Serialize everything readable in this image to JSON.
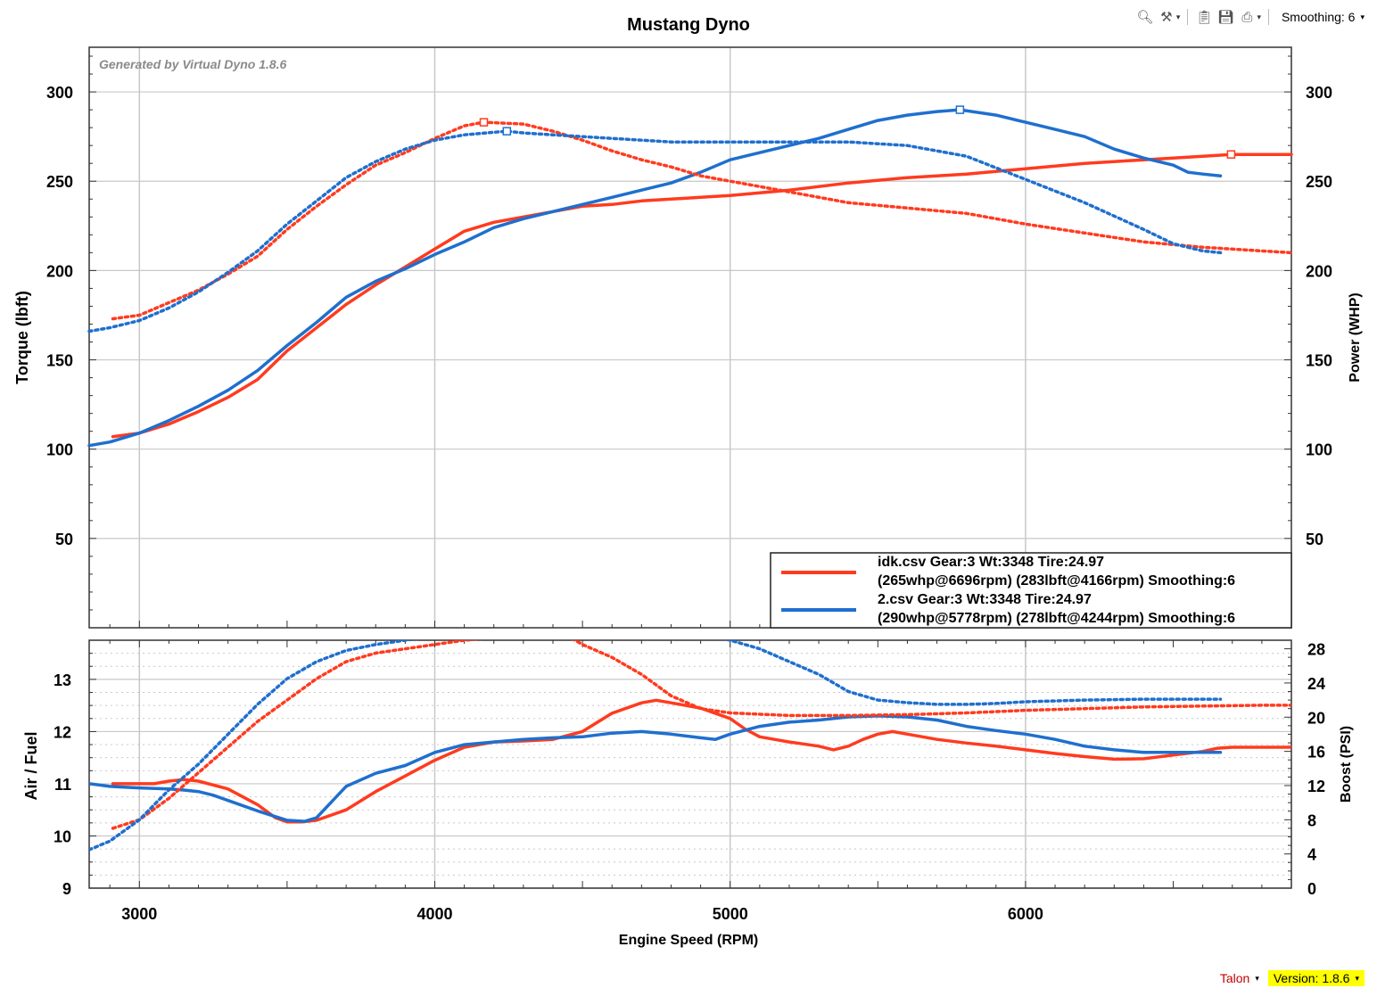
{
  "toolbar": {
    "icons": [
      "zoom-icon",
      "tools-icon",
      "clipboard-icon",
      "save-icon",
      "print-icon"
    ],
    "smoothing_label": "Smoothing: 6"
  },
  "status_bar": {
    "talon_label": "Talon",
    "version_label": "Version: 1.8.6"
  },
  "colors": {
    "red": "#ff3b1f",
    "blue": "#1f6fce",
    "grid": "#c8c8c8"
  },
  "chart_data": [
    {
      "type": "line",
      "title": "Mustang Dyno",
      "watermark": "Generated by Virtual Dyno 1.8.6",
      "ylabel": "Torque (lbft)",
      "y2label": "Power (WHP)",
      "xlim": [
        2830,
        6900
      ],
      "ylim": [
        0,
        325
      ],
      "y2lim": [
        0,
        325
      ],
      "yticks": [
        50,
        100,
        150,
        200,
        250,
        300
      ],
      "grid": true,
      "legend": {
        "placement": "bottom-right",
        "entries": [
          {
            "line1": "idk.csv Gear:3 Wt:3348 Tire:24.97",
            "line2": "(265whp@6696rpm) (283lbft@4166rpm) Smoothing:6",
            "color": "#ff3b1f"
          },
          {
            "line1": "2.csv Gear:3 Wt:3348 Tire:24.97",
            "line2": "(290whp@5778rpm) (278lbft@4244rpm) Smoothing:6",
            "color": "#1f6fce"
          }
        ]
      },
      "series": [
        {
          "name": "idk.csv power",
          "color": "#ff3b1f",
          "style": "solid",
          "x": [
            2910,
            3000,
            3100,
            3200,
            3300,
            3400,
            3500,
            3600,
            3700,
            3800,
            3900,
            4000,
            4100,
            4200,
            4300,
            4400,
            4500,
            4600,
            4700,
            4800,
            4900,
            5000,
            5200,
            5400,
            5600,
            5800,
            6000,
            6200,
            6400,
            6600,
            6696,
            6800,
            6900
          ],
          "y": [
            107,
            109,
            114,
            121,
            129,
            139,
            155,
            168,
            181,
            192,
            202,
            212,
            222,
            227,
            230,
            233,
            236,
            237,
            239,
            240,
            241,
            242,
            245,
            249,
            252,
            254,
            257,
            260,
            262,
            264,
            265,
            265,
            265
          ],
          "marker": {
            "x": 6696,
            "y": 265
          }
        },
        {
          "name": "2.csv power",
          "color": "#1f6fce",
          "style": "solid",
          "x": [
            2830,
            2900,
            3000,
            3100,
            3200,
            3300,
            3400,
            3500,
            3600,
            3700,
            3800,
            3900,
            4000,
            4100,
            4200,
            4300,
            4400,
            4500,
            4600,
            4700,
            4800,
            4900,
            5000,
            5100,
            5200,
            5300,
            5400,
            5500,
            5600,
            5700,
            5778,
            5900,
            6000,
            6100,
            6200,
            6300,
            6400,
            6500,
            6550,
            6600,
            6660
          ],
          "y": [
            102,
            104,
            109,
            116,
            124,
            133,
            144,
            158,
            171,
            185,
            194,
            201,
            209,
            216,
            224,
            229,
            233,
            237,
            241,
            245,
            249,
            255,
            262,
            266,
            270,
            274,
            279,
            284,
            287,
            289,
            290,
            287,
            283,
            279,
            275,
            268,
            263,
            259,
            255,
            254,
            253
          ],
          "marker": {
            "x": 5778,
            "y": 290
          }
        },
        {
          "name": "idk.csv torque",
          "color": "#ff3b1f",
          "style": "dotted",
          "x": [
            2910,
            3000,
            3100,
            3200,
            3300,
            3400,
            3500,
            3600,
            3700,
            3800,
            3900,
            4000,
            4100,
            4166,
            4300,
            4400,
            4500,
            4600,
            4700,
            4800,
            4900,
            5000,
            5200,
            5400,
            5600,
            5800,
            6000,
            6200,
            6400,
            6600,
            6800,
            6900
          ],
          "y": [
            173,
            175,
            182,
            189,
            198,
            208,
            223,
            236,
            248,
            259,
            266,
            274,
            281,
            283,
            282,
            278,
            273,
            267,
            262,
            258,
            253,
            250,
            244,
            238,
            235,
            232,
            226,
            221,
            216,
            213,
            211,
            210
          ],
          "marker": {
            "x": 4166,
            "y": 283
          }
        },
        {
          "name": "2.csv torque",
          "color": "#1f6fce",
          "style": "dotted",
          "x": [
            2830,
            2900,
            3000,
            3100,
            3200,
            3300,
            3400,
            3500,
            3600,
            3700,
            3800,
            3900,
            4000,
            4100,
            4244,
            4300,
            4400,
            4500,
            4600,
            4700,
            4800,
            5000,
            5200,
            5400,
            5600,
            5800,
            6000,
            6200,
            6400,
            6500,
            6600,
            6660
          ],
          "y": [
            166,
            168,
            172,
            179,
            188,
            199,
            211,
            226,
            239,
            252,
            261,
            268,
            273,
            276,
            278,
            277,
            276,
            275,
            274,
            273,
            272,
            272,
            272,
            272,
            270,
            264,
            251,
            238,
            223,
            215,
            211,
            210
          ],
          "marker": {
            "x": 4244,
            "y": 278
          }
        }
      ]
    },
    {
      "type": "line",
      "xlabel": "Engine Speed (RPM)",
      "ylabel": "Air / Fuel",
      "y2label": "Boost (PSI)",
      "xlim": [
        2830,
        6900
      ],
      "xticks": [
        3000,
        4000,
        5000,
        6000
      ],
      "ylim": [
        9,
        13.75
      ],
      "yticks": [
        9,
        10,
        11,
        12,
        13
      ],
      "y2lim": [
        0,
        29
      ],
      "y2ticks": [
        0,
        4,
        8,
        12,
        16,
        20,
        24,
        28
      ],
      "grid": true,
      "series": [
        {
          "name": "idk.csv air/fuel",
          "color": "#ff3b1f",
          "style": "solid",
          "axis": "left",
          "x": [
            2910,
            3000,
            3050,
            3100,
            3150,
            3200,
            3300,
            3400,
            3460,
            3500,
            3550,
            3600,
            3700,
            3800,
            3900,
            4000,
            4100,
            4200,
            4300,
            4400,
            4500,
            4600,
            4700,
            4750,
            4800,
            4900,
            5000,
            5050,
            5100,
            5150,
            5200,
            5300,
            5350,
            5400,
            5450,
            5500,
            5550,
            5600,
            5700,
            5800,
            5900,
            6000,
            6100,
            6200,
            6300,
            6400,
            6500,
            6600,
            6650,
            6700,
            6800,
            6900
          ],
          "y": [
            11,
            11,
            11,
            11.05,
            11.08,
            11.05,
            10.9,
            10.6,
            10.35,
            10.27,
            10.27,
            10.3,
            10.5,
            10.85,
            11.15,
            11.45,
            11.7,
            11.8,
            11.82,
            11.85,
            12,
            12.35,
            12.55,
            12.6,
            12.55,
            12.45,
            12.25,
            12.05,
            11.9,
            11.85,
            11.8,
            11.72,
            11.65,
            11.72,
            11.85,
            11.95,
            12,
            11.95,
            11.85,
            11.78,
            11.72,
            11.65,
            11.58,
            11.52,
            11.47,
            11.48,
            11.55,
            11.62,
            11.68,
            11.7,
            11.7,
            11.7
          ]
        },
        {
          "name": "2.csv air/fuel",
          "color": "#1f6fce",
          "style": "solid",
          "axis": "left",
          "x": [
            2830,
            2900,
            3000,
            3100,
            3150,
            3200,
            3250,
            3300,
            3400,
            3500,
            3560,
            3600,
            3650,
            3700,
            3800,
            3900,
            4000,
            4100,
            4200,
            4300,
            4400,
            4500,
            4600,
            4700,
            4800,
            4900,
            4950,
            5000,
            5100,
            5200,
            5300,
            5400,
            5500,
            5600,
            5700,
            5800,
            5900,
            6000,
            6100,
            6200,
            6300,
            6400,
            6500,
            6600,
            6660
          ],
          "y": [
            11,
            10.95,
            10.92,
            10.9,
            10.88,
            10.85,
            10.78,
            10.68,
            10.48,
            10.3,
            10.28,
            10.35,
            10.65,
            10.95,
            11.2,
            11.35,
            11.6,
            11.75,
            11.8,
            11.85,
            11.88,
            11.9,
            11.97,
            12,
            11.95,
            11.88,
            11.85,
            11.95,
            12.1,
            12.18,
            12.22,
            12.28,
            12.3,
            12.28,
            12.22,
            12.1,
            12.02,
            11.95,
            11.85,
            11.72,
            11.65,
            11.6,
            11.6,
            11.6,
            11.6
          ]
        },
        {
          "name": "idk.csv boost",
          "color": "#ff3b1f",
          "style": "dotted",
          "axis": "right",
          "x": [
            2910,
            3000,
            3100,
            3200,
            3300,
            3400,
            3500,
            3600,
            3700,
            3800,
            3900,
            4000,
            4100,
            4200,
            4300,
            4400,
            4450,
            4500,
            4600,
            4700,
            4800,
            4900,
            5000,
            5200,
            5400,
            5600,
            5800,
            6000,
            6200,
            6400,
            6600,
            6800,
            6900
          ],
          "y": [
            7,
            8,
            10.5,
            13.5,
            16.5,
            19.5,
            22,
            24.5,
            26.5,
            27.5,
            28,
            28.5,
            29,
            29.3,
            29.6,
            29.8,
            29.5,
            28.5,
            27,
            25,
            22.5,
            21,
            20.5,
            20.2,
            20.2,
            20.3,
            20.5,
            20.8,
            21,
            21.2,
            21.3,
            21.4,
            21.4
          ]
        },
        {
          "name": "2.csv boost",
          "color": "#1f6fce",
          "style": "dotted",
          "axis": "right",
          "x": [
            2830,
            2900,
            3000,
            3100,
            3200,
            3300,
            3400,
            3500,
            3600,
            3700,
            3800,
            3900,
            4000,
            4100,
            4200,
            4300,
            4400,
            4500,
            4600,
            4700,
            4800,
            4900,
            4950,
            5000,
            5100,
            5200,
            5300,
            5400,
            5500,
            5600,
            5700,
            5800,
            5900,
            6000,
            6200,
            6400,
            6600,
            6660
          ],
          "y": [
            4.5,
            5.5,
            8,
            11.5,
            14.5,
            18,
            21.5,
            24.5,
            26.5,
            27.8,
            28.5,
            29,
            29.4,
            29.7,
            29.9,
            30,
            30.1,
            30.1,
            30,
            29.9,
            29.7,
            29.5,
            29.4,
            29,
            28,
            26.5,
            25,
            23,
            22,
            21.7,
            21.5,
            21.5,
            21.6,
            21.8,
            22,
            22.1,
            22.1,
            22.1
          ]
        }
      ]
    }
  ]
}
